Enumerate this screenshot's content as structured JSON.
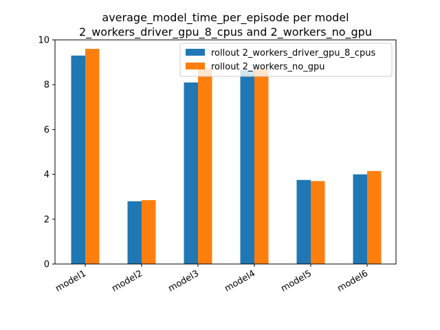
{
  "chart_data": {
    "type": "bar",
    "title_lines": [
      "average_model_time_per_episode per model",
      "2_workers_driver_gpu_8_cpus and 2_workers_no_gpu"
    ],
    "xlabel": "",
    "ylabel": "",
    "categories": [
      "model1",
      "model2",
      "model3",
      "model4",
      "model5",
      "model6"
    ],
    "series": [
      {
        "name": "rollout 2_workers_driver_gpu_8_cpus",
        "color": "#1f77b4",
        "values": [
          9.3,
          2.8,
          8.1,
          8.65,
          3.75,
          4.0
        ]
      },
      {
        "name": "rollout 2_workers_no_gpu",
        "color": "#ff7f0e",
        "values": [
          9.6,
          2.85,
          8.7,
          8.7,
          3.7,
          4.15
        ]
      }
    ],
    "ylim": [
      0,
      10
    ],
    "yticks": [
      0,
      2,
      4,
      6,
      8,
      10
    ],
    "grid": false,
    "legend_position": "top-right",
    "x_tick_rotation_deg": 30
  }
}
